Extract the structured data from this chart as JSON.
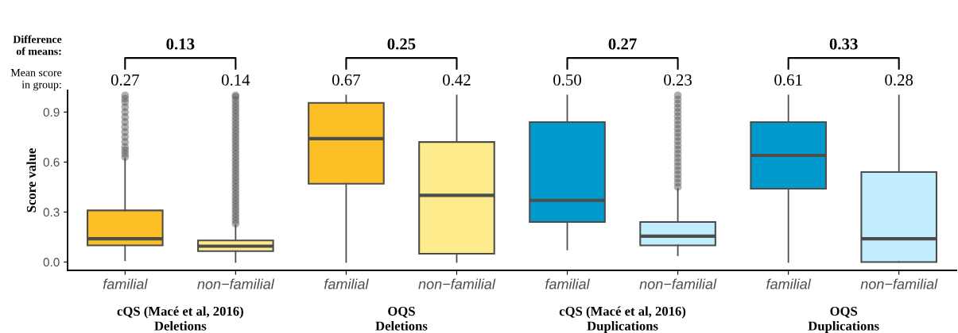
{
  "chart_data": {
    "type": "box",
    "ylabel": "Score value",
    "categories": [
      "familial",
      "non−familial",
      "familial",
      "non−familial",
      "familial",
      "non−familial",
      "familial",
      "non−familial"
    ],
    "colors": [
      "#fdbf26",
      "#feeb8c",
      "#fdbf26",
      "#feeb8c",
      "#009bcc",
      "#c1edfc",
      "#009bcc",
      "#c1edfc"
    ],
    "boxes": [
      {
        "low": 0.01,
        "q1": 0.1,
        "median": 0.14,
        "q3": 0.31,
        "high": 0.62,
        "outliers": [
          0.63,
          0.65,
          0.67,
          0.69,
          0.72,
          0.75,
          0.78,
          0.81,
          0.84,
          0.87,
          0.9,
          0.93,
          0.96,
          0.98,
          1.0
        ]
      },
      {
        "low": 0.0,
        "q1": 0.065,
        "median": 0.095,
        "q3": 0.13,
        "high": 0.22,
        "outliers": [
          0.23,
          0.25,
          0.27,
          0.29,
          0.31,
          0.33,
          0.35,
          0.37,
          0.39,
          0.41,
          0.43,
          0.45,
          0.47,
          0.49,
          0.51,
          0.53,
          0.55,
          0.57,
          0.59,
          0.61,
          0.63,
          0.65,
          0.67,
          0.69,
          0.71,
          0.73,
          0.75,
          0.77,
          0.79,
          0.81,
          0.83,
          0.85,
          0.87,
          0.89,
          0.91,
          0.93,
          0.95,
          0.97,
          0.99,
          1.0
        ]
      },
      {
        "low": 0.0,
        "q1": 0.47,
        "median": 0.74,
        "q3": 0.955,
        "high": 1.0
      },
      {
        "low": 0.0,
        "q1": 0.05,
        "median": 0.4,
        "q3": 0.72,
        "high": 1.0
      },
      {
        "low": 0.075,
        "q1": 0.24,
        "median": 0.37,
        "q3": 0.84,
        "high": 1.0
      },
      {
        "low": 0.04,
        "q1": 0.1,
        "median": 0.155,
        "q3": 0.24,
        "high": 0.44,
        "outliers": [
          0.45,
          0.475,
          0.5,
          0.525,
          0.55,
          0.575,
          0.6,
          0.625,
          0.65,
          0.675,
          0.7,
          0.725,
          0.75,
          0.775,
          0.8,
          0.825,
          0.85,
          0.875,
          0.9,
          0.925,
          0.95,
          0.975,
          1.0
        ]
      },
      {
        "low": 0.0,
        "q1": 0.44,
        "median": 0.64,
        "q3": 0.84,
        "high": 1.0
      },
      {
        "low": 0.0,
        "q1": 0.0,
        "median": 0.14,
        "q3": 0.54,
        "high": 1.0
      }
    ],
    "ylim": [
      -0.05,
      1.03
    ],
    "yticks": [
      {
        "value": 0,
        "label": "0.0"
      },
      0.3,
      0.6,
      0.9
    ],
    "annotations": [
      "Difference of means:",
      "Mean score in group:",
      "0.13",
      "0.27",
      "0.14",
      "0.25",
      "0.67",
      "0.42",
      "0.27",
      "0.50",
      "0.23",
      "0.33",
      "0.61",
      "0.28",
      "cQS (Macé et al, 2016)\nDeletions",
      "OQS\nDeletions",
      "cQS (Macé et al, 2016)\nDuplications",
      "OQS\nDuplications"
    ]
  }
}
